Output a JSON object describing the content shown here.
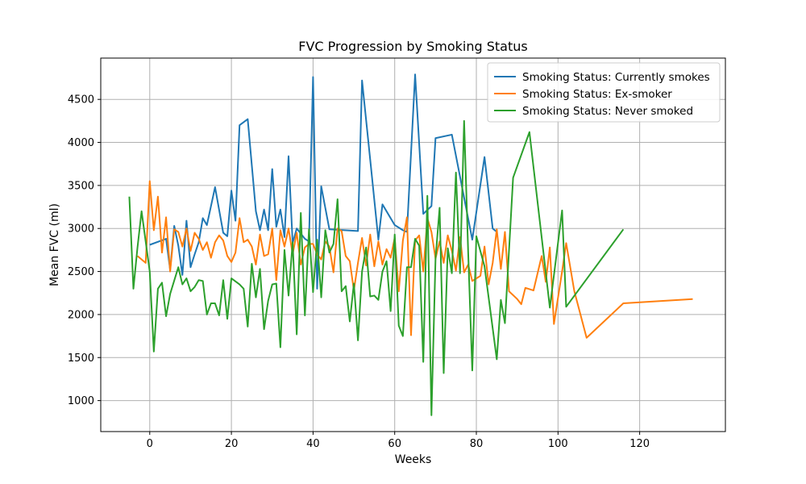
{
  "chart_data": {
    "type": "line",
    "title": "FVC Progression by Smoking Status",
    "xlabel": "Weeks",
    "ylabel": "Mean FVC (ml)",
    "xlim": [
      -12,
      141
    ],
    "ylim": [
      640,
      4980
    ],
    "xticks": [
      0,
      20,
      40,
      60,
      80,
      100,
      120
    ],
    "yticks": [
      1000,
      1500,
      2000,
      2500,
      3000,
      3500,
      4000,
      4500
    ],
    "grid": true,
    "legend_position": "top-right",
    "series": [
      {
        "name": "Smoking Status: Currently smokes",
        "color": "#1f77b4",
        "points": [
          [
            0,
            2810
          ],
          [
            4,
            2880
          ],
          [
            5,
            2520
          ],
          [
            6,
            3030
          ],
          [
            7,
            2800
          ],
          [
            8,
            2460
          ],
          [
            9,
            3090
          ],
          [
            10,
            2550
          ],
          [
            11,
            2700
          ],
          [
            12,
            2840
          ],
          [
            13,
            3120
          ],
          [
            14,
            3040
          ],
          [
            16,
            3480
          ],
          [
            18,
            2950
          ],
          [
            19,
            2910
          ],
          [
            20,
            3440
          ],
          [
            21,
            3090
          ],
          [
            22,
            4200
          ],
          [
            24,
            4270
          ],
          [
            26,
            3200
          ],
          [
            27,
            2980
          ],
          [
            28,
            3220
          ],
          [
            29,
            2980
          ],
          [
            30,
            3690
          ],
          [
            31,
            3020
          ],
          [
            32,
            3220
          ],
          [
            33,
            2900
          ],
          [
            34,
            3840
          ],
          [
            35,
            2830
          ],
          [
            36,
            3000
          ],
          [
            38,
            2880
          ],
          [
            39,
            2850
          ],
          [
            40,
            4760
          ],
          [
            41,
            2300
          ],
          [
            42,
            3490
          ],
          [
            44,
            2990
          ],
          [
            51,
            2970
          ],
          [
            52,
            4720
          ],
          [
            54,
            3800
          ],
          [
            56,
            2870
          ],
          [
            57,
            3280
          ],
          [
            60,
            3040
          ],
          [
            62,
            2980
          ],
          [
            63,
            2960
          ],
          [
            65,
            4790
          ],
          [
            67,
            3170
          ],
          [
            69,
            3260
          ],
          [
            70,
            4050
          ],
          [
            74,
            4090
          ],
          [
            79,
            2870
          ],
          [
            82,
            3830
          ],
          [
            84,
            3000
          ],
          [
            85,
            2960
          ]
        ]
      },
      {
        "name": "Smoking Status: Ex-smoker",
        "color": "#ff7f0e",
        "points": [
          [
            -3,
            2680
          ],
          [
            -1,
            2600
          ],
          [
            0,
            3550
          ],
          [
            1,
            2980
          ],
          [
            2,
            3370
          ],
          [
            3,
            2720
          ],
          [
            4,
            3130
          ],
          [
            5,
            2500
          ],
          [
            6,
            2990
          ],
          [
            7,
            2960
          ],
          [
            8,
            2790
          ],
          [
            9,
            3000
          ],
          [
            10,
            2740
          ],
          [
            11,
            2950
          ],
          [
            12,
            2880
          ],
          [
            13,
            2750
          ],
          [
            14,
            2840
          ],
          [
            15,
            2660
          ],
          [
            16,
            2840
          ],
          [
            17,
            2920
          ],
          [
            18,
            2860
          ],
          [
            19,
            2680
          ],
          [
            20,
            2610
          ],
          [
            21,
            2720
          ],
          [
            22,
            3120
          ],
          [
            23,
            2840
          ],
          [
            24,
            2870
          ],
          [
            25,
            2790
          ],
          [
            26,
            2580
          ],
          [
            27,
            2930
          ],
          [
            28,
            2680
          ],
          [
            29,
            2700
          ],
          [
            30,
            3000
          ],
          [
            31,
            2400
          ],
          [
            32,
            2980
          ],
          [
            33,
            2790
          ],
          [
            34,
            3000
          ],
          [
            35,
            2700
          ],
          [
            36,
            2950
          ],
          [
            37,
            2580
          ],
          [
            38,
            2780
          ],
          [
            39,
            2820
          ],
          [
            40,
            2820
          ],
          [
            41,
            2700
          ],
          [
            42,
            2640
          ],
          [
            43,
            2850
          ],
          [
            44,
            2790
          ],
          [
            45,
            2490
          ],
          [
            46,
            3000
          ],
          [
            47,
            2970
          ],
          [
            48,
            2680
          ],
          [
            49,
            2620
          ],
          [
            50,
            2280
          ],
          [
            51,
            2600
          ],
          [
            52,
            2890
          ],
          [
            53,
            2570
          ],
          [
            54,
            2930
          ],
          [
            55,
            2560
          ],
          [
            56,
            2850
          ],
          [
            57,
            2580
          ],
          [
            58,
            2760
          ],
          [
            59,
            2660
          ],
          [
            60,
            2890
          ],
          [
            61,
            2270
          ],
          [
            62,
            2860
          ],
          [
            63,
            3130
          ],
          [
            64,
            1760
          ],
          [
            65,
            2860
          ],
          [
            66,
            2920
          ],
          [
            67,
            2500
          ],
          [
            68,
            3120
          ],
          [
            69,
            2960
          ],
          [
            70,
            2650
          ],
          [
            71,
            2850
          ],
          [
            72,
            2600
          ],
          [
            73,
            2920
          ],
          [
            74,
            2740
          ],
          [
            75,
            2510
          ],
          [
            76,
            2900
          ],
          [
            77,
            2490
          ],
          [
            78,
            2580
          ],
          [
            79,
            2390
          ],
          [
            80,
            2420
          ],
          [
            81,
            2450
          ],
          [
            82,
            2790
          ],
          [
            83,
            2350
          ],
          [
            84,
            2600
          ],
          [
            85,
            2990
          ],
          [
            86,
            2530
          ],
          [
            87,
            2960
          ],
          [
            88,
            2270
          ],
          [
            90,
            2180
          ],
          [
            91,
            2120
          ],
          [
            92,
            2310
          ],
          [
            94,
            2280
          ],
          [
            96,
            2680
          ],
          [
            97,
            2380
          ],
          [
            98,
            2780
          ],
          [
            99,
            1890
          ],
          [
            101,
            2500
          ],
          [
            102,
            2830
          ],
          [
            104,
            2270
          ],
          [
            107,
            1730
          ],
          [
            116,
            2130
          ],
          [
            133,
            2180
          ]
        ]
      },
      {
        "name": "Smoking Status: Never smoked",
        "color": "#2ca02c",
        "points": [
          [
            -5,
            3370
          ],
          [
            -4,
            2300
          ],
          [
            -3,
            2780
          ],
          [
            -2,
            3200
          ],
          [
            0,
            2500
          ],
          [
            1,
            1570
          ],
          [
            2,
            2300
          ],
          [
            3,
            2370
          ],
          [
            4,
            1980
          ],
          [
            5,
            2240
          ],
          [
            7,
            2550
          ],
          [
            8,
            2350
          ],
          [
            9,
            2420
          ],
          [
            10,
            2270
          ],
          [
            11,
            2320
          ],
          [
            12,
            2400
          ],
          [
            13,
            2390
          ],
          [
            14,
            2000
          ],
          [
            15,
            2130
          ],
          [
            16,
            2130
          ],
          [
            17,
            1990
          ],
          [
            18,
            2400
          ],
          [
            19,
            1950
          ],
          [
            20,
            2420
          ],
          [
            22,
            2350
          ],
          [
            23,
            2300
          ],
          [
            24,
            1860
          ],
          [
            25,
            2590
          ],
          [
            26,
            2200
          ],
          [
            27,
            2530
          ],
          [
            28,
            1830
          ],
          [
            29,
            2160
          ],
          [
            30,
            2350
          ],
          [
            31,
            2360
          ],
          [
            32,
            1620
          ],
          [
            33,
            2750
          ],
          [
            34,
            2220
          ],
          [
            35,
            2840
          ],
          [
            36,
            1770
          ],
          [
            37,
            3180
          ],
          [
            38,
            1990
          ],
          [
            39,
            2990
          ],
          [
            40,
            2260
          ],
          [
            41,
            2870
          ],
          [
            42,
            2200
          ],
          [
            43,
            2980
          ],
          [
            44,
            2720
          ],
          [
            45,
            2820
          ],
          [
            46,
            3340
          ],
          [
            47,
            2270
          ],
          [
            48,
            2330
          ],
          [
            49,
            1920
          ],
          [
            50,
            2360
          ],
          [
            51,
            1700
          ],
          [
            52,
            2500
          ],
          [
            53,
            2780
          ],
          [
            54,
            2210
          ],
          [
            55,
            2220
          ],
          [
            56,
            2170
          ],
          [
            57,
            2500
          ],
          [
            58,
            2620
          ],
          [
            59,
            2040
          ],
          [
            60,
            2930
          ],
          [
            61,
            1870
          ],
          [
            62,
            1750
          ],
          [
            63,
            2550
          ],
          [
            64,
            2550
          ],
          [
            65,
            2880
          ],
          [
            66,
            2800
          ],
          [
            67,
            1450
          ],
          [
            68,
            3380
          ],
          [
            69,
            830
          ],
          [
            70,
            2650
          ],
          [
            71,
            3240
          ],
          [
            72,
            1320
          ],
          [
            73,
            2770
          ],
          [
            74,
            2480
          ],
          [
            75,
            3650
          ],
          [
            76,
            2480
          ],
          [
            77,
            4250
          ],
          [
            78,
            2720
          ],
          [
            79,
            1350
          ],
          [
            80,
            2910
          ],
          [
            82,
            2560
          ],
          [
            83,
            2200
          ],
          [
            85,
            1480
          ],
          [
            86,
            2170
          ],
          [
            87,
            1900
          ],
          [
            89,
            3590
          ],
          [
            93,
            4120
          ],
          [
            98,
            2080
          ],
          [
            101,
            3210
          ],
          [
            102,
            2090
          ],
          [
            116,
            2990
          ]
        ]
      }
    ]
  }
}
